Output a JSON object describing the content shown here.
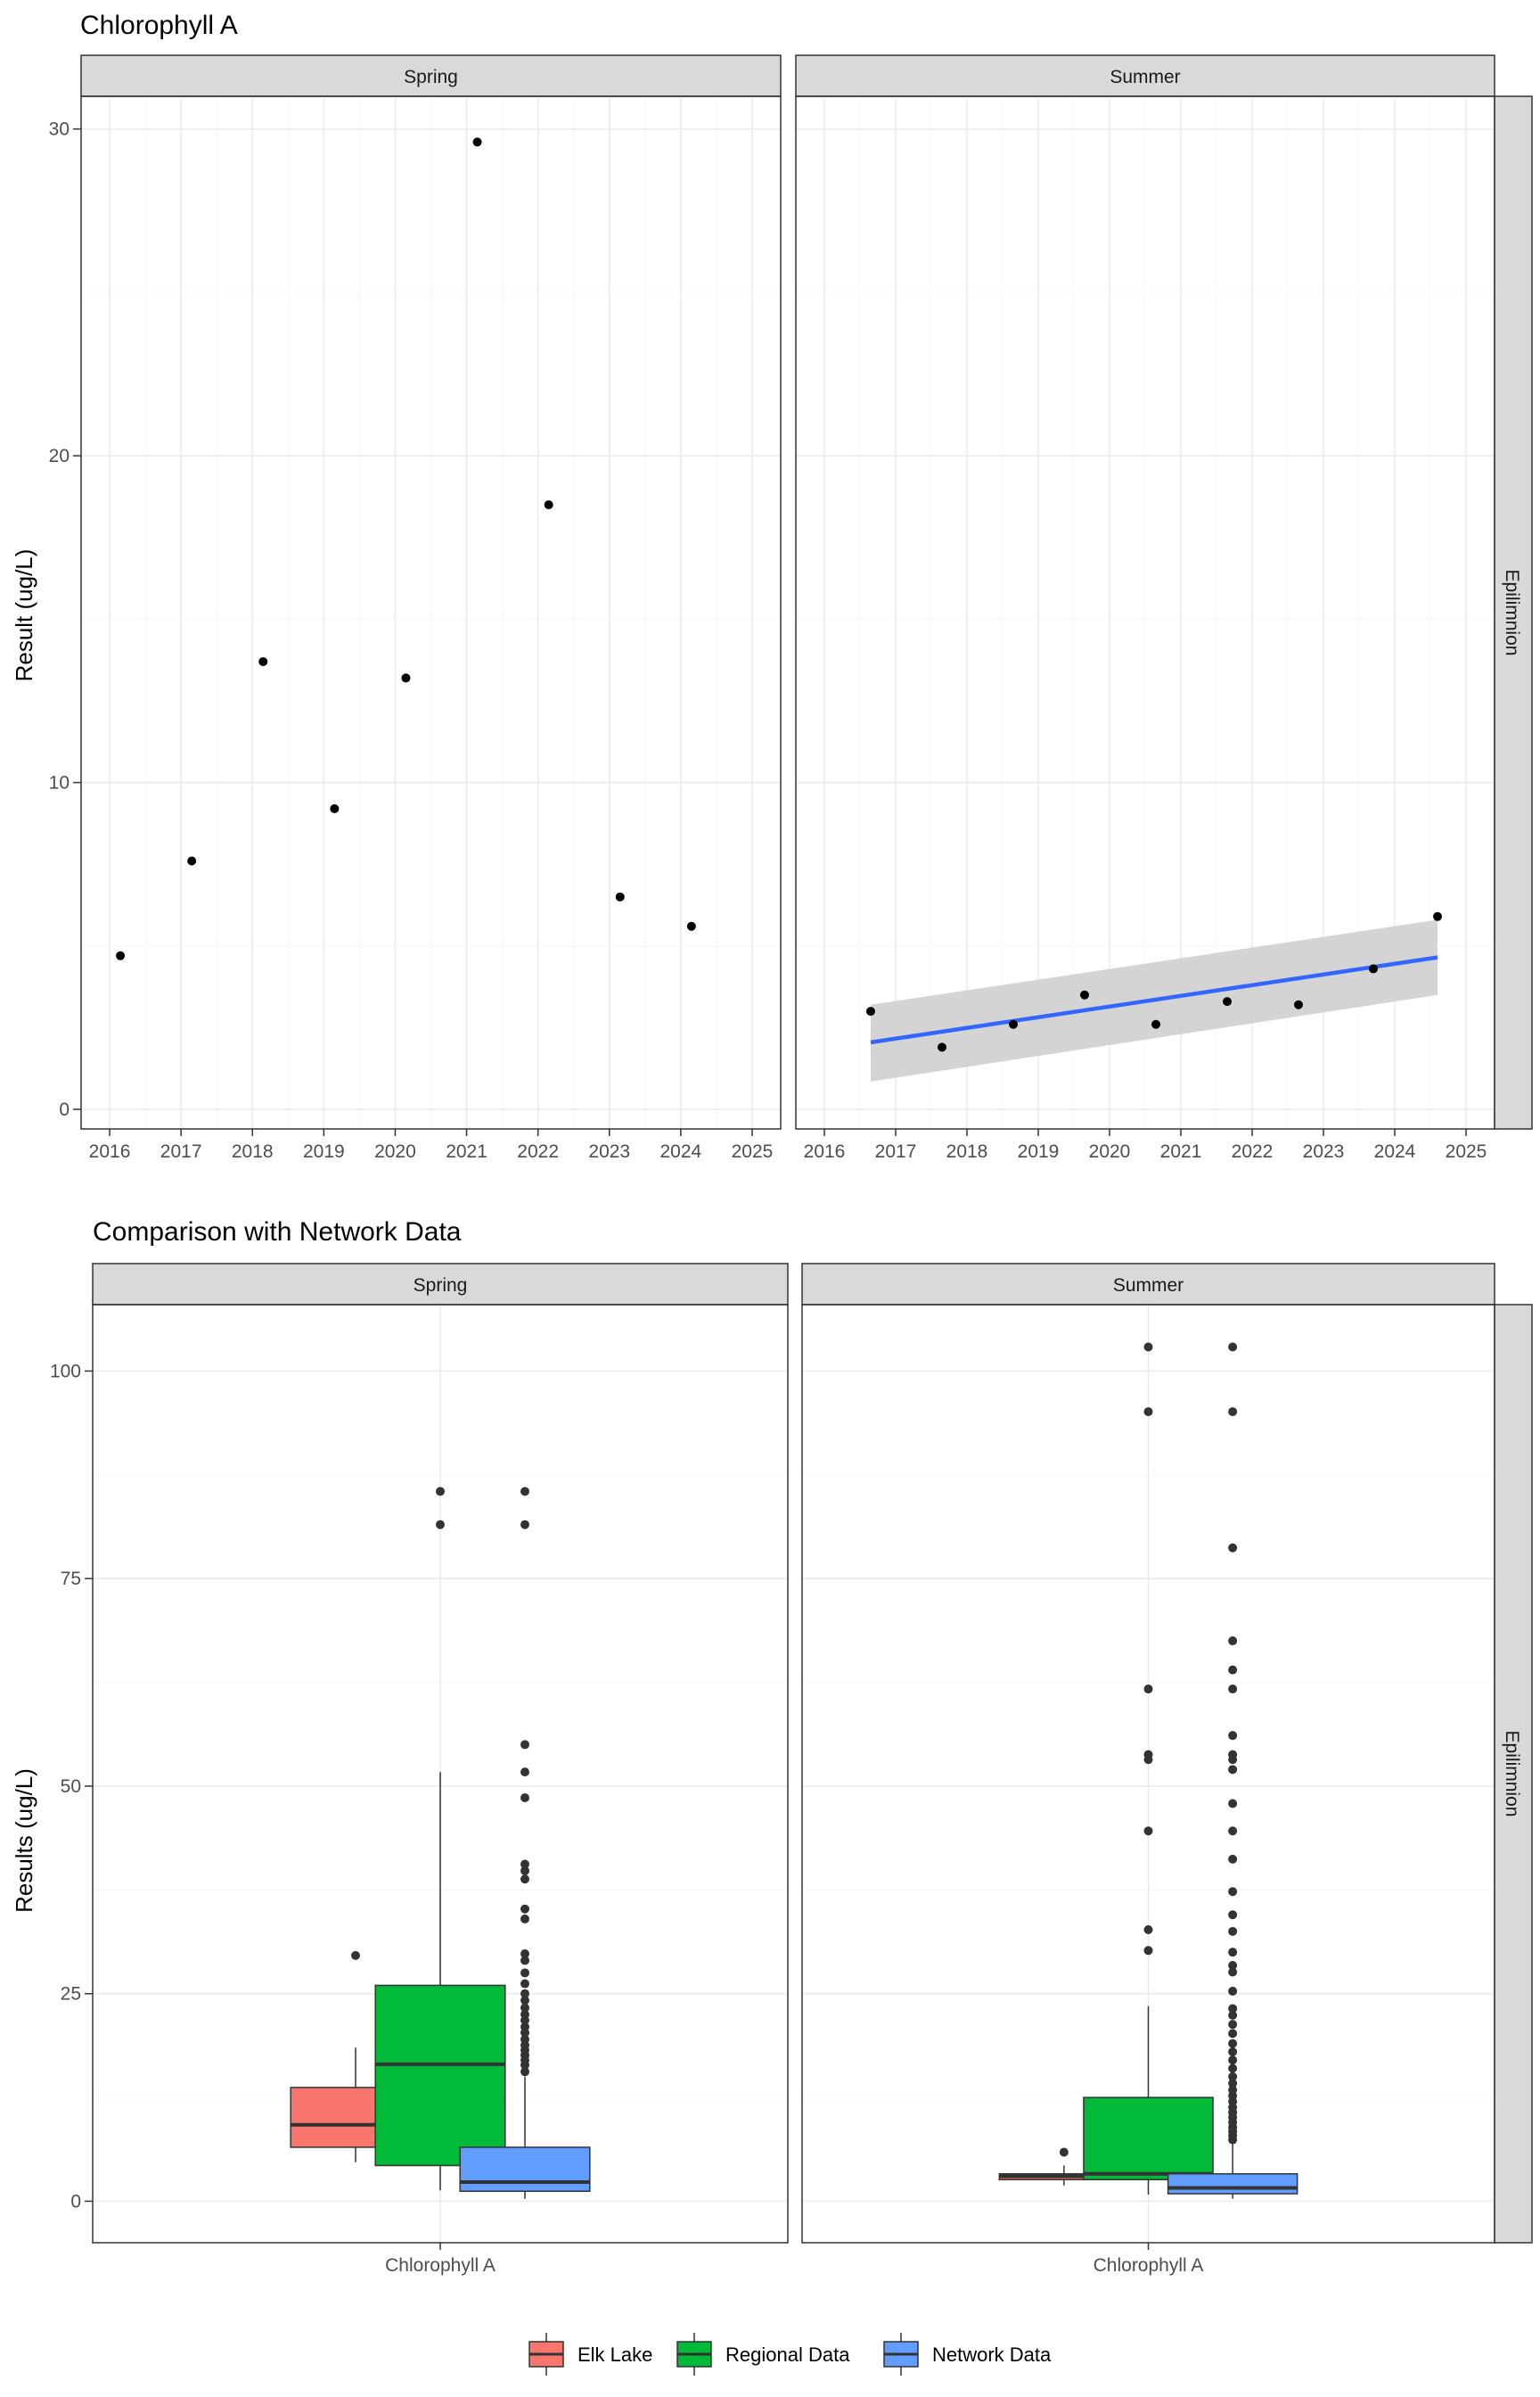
{
  "chart_data": [
    {
      "type": "scatter",
      "title": "Chlorophyll A",
      "ylabel": "Result (ug/L)",
      "xlabel": "",
      "row_strip": "Epilimnion",
      "ylim": [
        -0.6,
        31.0
      ],
      "yticks": [
        0,
        10,
        20,
        30
      ],
      "xlim": [
        2015.6,
        2025.4
      ],
      "xticks": [
        "2016",
        "2017",
        "2018",
        "2019",
        "2020",
        "2021",
        "2022",
        "2023",
        "2024",
        "2025"
      ],
      "grid": true,
      "panels": [
        {
          "strip": "Spring",
          "points": [
            {
              "x": 2016.15,
              "y": 4.7
            },
            {
              "x": 2017.15,
              "y": 7.6
            },
            {
              "x": 2018.15,
              "y": 13.7
            },
            {
              "x": 2019.15,
              "y": 9.2
            },
            {
              "x": 2020.15,
              "y": 13.2
            },
            {
              "x": 2021.15,
              "y": 29.6
            },
            {
              "x": 2022.15,
              "y": 18.5
            },
            {
              "x": 2023.15,
              "y": 6.5
            },
            {
              "x": 2024.15,
              "y": 5.6
            }
          ]
        },
        {
          "strip": "Summer",
          "points": [
            {
              "x": 2016.65,
              "y": 3.0
            },
            {
              "x": 2017.65,
              "y": 1.9
            },
            {
              "x": 2018.65,
              "y": 2.6
            },
            {
              "x": 2019.65,
              "y": 3.5
            },
            {
              "x": 2020.65,
              "y": 2.6
            },
            {
              "x": 2021.65,
              "y": 3.3
            },
            {
              "x": 2022.65,
              "y": 3.2
            },
            {
              "x": 2023.7,
              "y": 4.3
            },
            {
              "x": 2024.6,
              "y": 5.9
            }
          ],
          "trend": {
            "x": [
              2016.65,
              2024.6
            ],
            "y": [
              2.05,
              4.65
            ],
            "band_upper": [
              3.2,
              5.8
            ],
            "band_lower": [
              0.85,
              3.5
            ],
            "color": "#3366ff",
            "band_color": "#cccccc"
          }
        }
      ]
    },
    {
      "type": "box",
      "title": "Comparison with Network Data",
      "ylabel": "Results (ug/L)",
      "xlabel": "",
      "row_strip": "Epilimnion",
      "ylim": [
        -5.0,
        108.0
      ],
      "yticks": [
        0,
        25,
        50,
        75,
        100
      ],
      "category": "Chlorophyll A",
      "grid": true,
      "legend": {
        "position": "bottom",
        "items": [
          {
            "name": "Elk Lake",
            "color": "#f8766d"
          },
          {
            "name": "Regional Data",
            "color": "#00ba38"
          },
          {
            "name": "Network Data",
            "color": "#619cff"
          }
        ]
      },
      "panels": [
        {
          "strip": "Spring",
          "boxes": [
            {
              "series": "Elk Lake",
              "lower_whisker": 4.7,
              "q1": 6.5,
              "median": 9.2,
              "q3": 13.7,
              "upper_whisker": 18.5,
              "outliers": [
                29.6
              ]
            },
            {
              "series": "Regional Data",
              "lower_whisker": 1.3,
              "q1": 4.3,
              "median": 16.5,
              "q3": 26.0,
              "upper_whisker": 51.7,
              "outliers": [
                81.5,
                85.5
              ]
            },
            {
              "series": "Network Data",
              "lower_whisker": 0.3,
              "q1": 1.2,
              "median": 2.3,
              "q3": 6.5,
              "upper_whisker": 15.0,
              "outliers": [
                15.6,
                16.4,
                17.0,
                17.6,
                18.2,
                18.8,
                19.5,
                20.3,
                21.0,
                21.8,
                22.5,
                23.3,
                24.2,
                25.0,
                26.2,
                27.5,
                29.0,
                29.8,
                34.0,
                35.2,
                38.8,
                39.8,
                40.6,
                48.6,
                51.7,
                55.0,
                81.5,
                85.5
              ]
            }
          ]
        },
        {
          "strip": "Summer",
          "boxes": [
            {
              "series": "Elk Lake",
              "lower_whisker": 1.9,
              "q1": 2.6,
              "median": 3.0,
              "q3": 3.3,
              "upper_whisker": 4.3,
              "outliers": [
                5.9
              ]
            },
            {
              "series": "Regional Data",
              "lower_whisker": 0.8,
              "q1": 2.6,
              "median": 3.3,
              "q3": 12.5,
              "upper_whisker": 23.5,
              "outliers": [
                30.2,
                32.7,
                44.6,
                53.2,
                53.8,
                61.7,
                95.1,
                102.9
              ]
            },
            {
              "series": "Network Data",
              "lower_whisker": 0.3,
              "q1": 0.9,
              "median": 1.6,
              "q3": 3.3,
              "upper_whisker": 7.0,
              "outliers": [
                7.4,
                7.9,
                8.4,
                8.9,
                9.5,
                10.1,
                10.7,
                11.3,
                12.0,
                12.7,
                13.4,
                14.2,
                15.0,
                16.0,
                17.0,
                18.0,
                19.0,
                20.2,
                21.3,
                22.4,
                23.2,
                25.3,
                27.6,
                28.4,
                30.0,
                32.5,
                34.5,
                37.3,
                41.2,
                44.6,
                47.9,
                52.0,
                53.2,
                53.8,
                56.1,
                61.7,
                64.0,
                67.5,
                78.7,
                95.1,
                102.9
              ]
            }
          ]
        }
      ]
    }
  ]
}
